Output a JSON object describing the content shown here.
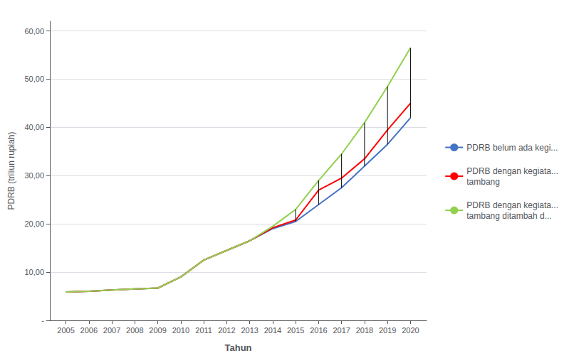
{
  "chart_data": {
    "type": "line",
    "x": [
      2005,
      2006,
      2007,
      2008,
      2009,
      2010,
      2011,
      2012,
      2013,
      2014,
      2015,
      2016,
      2017,
      2018,
      2019,
      2020
    ],
    "series": [
      {
        "name": "PDRB belum ada kegi...",
        "color": "#4472C4",
        "values": [
          5.9,
          6.05,
          6.3,
          6.5,
          6.7,
          9.0,
          12.5,
          14.5,
          16.5,
          19.0,
          20.5,
          24.0,
          27.5,
          32.0,
          36.5,
          42.0
        ]
      },
      {
        "name": "PDRB dengan kegiata...\ntambang",
        "color": "#FF0000",
        "values": [
          5.9,
          6.05,
          6.3,
          6.5,
          6.7,
          9.0,
          12.5,
          14.5,
          16.5,
          19.2,
          20.8,
          27.0,
          29.5,
          33.5,
          39.5,
          45.0
        ]
      },
      {
        "name": "PDRB dengan kegiata...\ntambang ditambah d...",
        "color": "#92D050",
        "values": [
          5.9,
          6.05,
          6.3,
          6.5,
          6.7,
          9.0,
          12.5,
          14.5,
          16.5,
          19.5,
          23.0,
          29.0,
          34.5,
          41.0,
          48.5,
          56.5
        ]
      }
    ],
    "range_lines": {
      "x": [
        2015,
        2016,
        2017,
        2018,
        2019,
        2020
      ],
      "low": [
        20.5,
        24.0,
        27.5,
        32.0,
        36.5,
        42.0
      ],
      "high": [
        23.0,
        29.0,
        34.5,
        41.0,
        48.5,
        56.5
      ],
      "color": "#000000"
    },
    "xlabel": "Tahun",
    "ylabel": "PDRB (triliun rupiah)",
    "xlim": [
      2004.3,
      2020.7
    ],
    "ylim": [
      0,
      62
    ],
    "xticks": [
      2005,
      2006,
      2007,
      2008,
      2009,
      2010,
      2011,
      2012,
      2013,
      2014,
      2015,
      2016,
      2017,
      2018,
      2019,
      2020
    ],
    "yticks": [
      {
        "value": 0,
        "label": "-"
      },
      {
        "value": 10,
        "label": "10,00"
      },
      {
        "value": 20,
        "label": "20,00"
      },
      {
        "value": 30,
        "label": "30,00"
      },
      {
        "value": 40,
        "label": "40,00"
      },
      {
        "value": 50,
        "label": "50,00"
      },
      {
        "value": 60,
        "label": "60,00"
      }
    ],
    "grid": true,
    "legend": "right"
  }
}
